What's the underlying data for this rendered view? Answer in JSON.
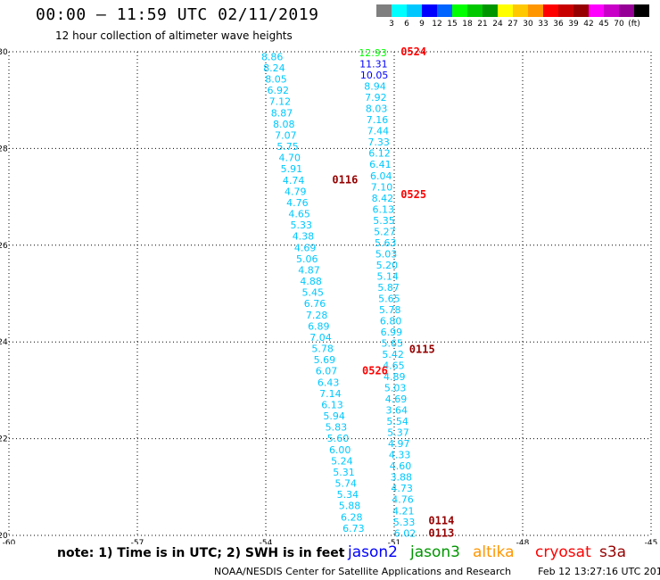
{
  "title": "00:00 – 11:59 UTC 02/11/2019",
  "subtitle": "12 hour collection of altimeter wave heights",
  "scale": {
    "colors": [
      "#7f7f7f",
      "#00ffff",
      "#00c8ff",
      "#0000ff",
      "#0064ff",
      "#00ff00",
      "#00c800",
      "#009600",
      "#ffff00",
      "#ffc800",
      "#ff9600",
      "#ff0000",
      "#c80000",
      "#960000",
      "#ff00ff",
      "#c800c8",
      "#960096",
      "#000000"
    ],
    "labels": [
      "3",
      "6",
      "9",
      "12",
      "15",
      "18",
      "21",
      "24",
      "27",
      "30",
      "33",
      "36",
      "39",
      "42",
      "45",
      "70",
      "(ft)"
    ]
  },
  "note": "note: 1) Time is in UTC; 2) SWH is in feet",
  "satellites": [
    {
      "name": "jason2",
      "color": "#0000ff"
    },
    {
      "name": "jason3",
      "color": "#009600"
    },
    {
      "name": "altika",
      "color": "#ff9600"
    },
    {
      "name": "cryosat",
      "color": "#ff0000"
    },
    {
      "name": "s3a",
      "color": "#960000"
    }
  ],
  "credit": "NOAA/NESDIS Center for Satellite Applications and Research",
  "timestamp": "Feb 12 13:27:16 UTC 2019",
  "chart_data": {
    "type": "scatter",
    "xlim": [
      -60,
      -45
    ],
    "ylim": [
      20,
      30
    ],
    "x_ticks": [
      "-60",
      "-57",
      "-54",
      "-51",
      "-48",
      "-45"
    ],
    "y_ticks": [
      "20",
      "22",
      "24",
      "26",
      "28",
      "30"
    ],
    "grid": true,
    "track_a": {
      "color": "#00c8ff",
      "x_start": -53.85,
      "y_start": 29.9,
      "x_end": -51.95,
      "y_end": 20.15,
      "values": [
        "8.86",
        "8.24",
        "8.05",
        "6.92",
        "7.12",
        "8.87",
        "8.08",
        "7.07",
        "5.75",
        "4.70",
        "5.91",
        "4.74",
        "4.79",
        "4.76",
        "4.65",
        "5.33",
        "4.38",
        "4.69",
        "5.06",
        "4.87",
        "4.88",
        "5.45",
        "6.76",
        "7.28",
        "6.89",
        "7.04",
        "5.78",
        "5.69",
        "6.07",
        "6.43",
        "7.14",
        "6.13",
        "5.94",
        "5.83",
        "5.60",
        "6.00",
        "5.24",
        "5.31",
        "5.74",
        "5.34",
        "5.88",
        "6.28",
        "6.73"
      ]
    },
    "track_b": {
      "x_start": -51.5,
      "y_start": 29.98,
      "x_end": -50.75,
      "y_end": 20.05,
      "points": [
        {
          "v": "12.93",
          "c": "#00ff00"
        },
        {
          "v": "11.31",
          "c": "#0000ff"
        },
        {
          "v": "10.05",
          "c": "#0000ff"
        },
        {
          "v": "8.94",
          "c": "#00c8ff"
        },
        {
          "v": "7.92",
          "c": "#00c8ff"
        },
        {
          "v": "8.03",
          "c": "#00c8ff"
        },
        {
          "v": "7.16",
          "c": "#00c8ff"
        },
        {
          "v": "7.44",
          "c": "#00c8ff"
        },
        {
          "v": "7.33",
          "c": "#00c8ff"
        },
        {
          "v": "6.12",
          "c": "#00c8ff"
        },
        {
          "v": "6.41",
          "c": "#00c8ff"
        },
        {
          "v": "6.04",
          "c": "#00c8ff"
        },
        {
          "v": "7.10",
          "c": "#00c8ff"
        },
        {
          "v": "8.42",
          "c": "#00c8ff"
        },
        {
          "v": "6.13",
          "c": "#00c8ff"
        },
        {
          "v": "5.35",
          "c": "#00c8ff"
        },
        {
          "v": "5.27",
          "c": "#00c8ff"
        },
        {
          "v": "5.63",
          "c": "#00c8ff"
        },
        {
          "v": "5.03",
          "c": "#00c8ff"
        },
        {
          "v": "5.20",
          "c": "#00c8ff"
        },
        {
          "v": "5.14",
          "c": "#00c8ff"
        },
        {
          "v": "5.87",
          "c": "#00c8ff"
        },
        {
          "v": "5.65",
          "c": "#00c8ff"
        },
        {
          "v": "5.78",
          "c": "#00c8ff"
        },
        {
          "v": "6.80",
          "c": "#00c8ff"
        },
        {
          "v": "6.99",
          "c": "#00c8ff"
        },
        {
          "v": "5.65",
          "c": "#00c8ff"
        },
        {
          "v": "5.42",
          "c": "#00c8ff"
        },
        {
          "v": "4.65",
          "c": "#00c8ff"
        },
        {
          "v": "4.89",
          "c": "#00c8ff"
        },
        {
          "v": "5.03",
          "c": "#00c8ff"
        },
        {
          "v": "4.69",
          "c": "#00c8ff"
        },
        {
          "v": "3.64",
          "c": "#00c8ff"
        },
        {
          "v": "5.54",
          "c": "#00c8ff"
        },
        {
          "v": "5.37",
          "c": "#00c8ff"
        },
        {
          "v": "4.97",
          "c": "#00c8ff"
        },
        {
          "v": "4.33",
          "c": "#00c8ff"
        },
        {
          "v": "4.60",
          "c": "#00c8ff"
        },
        {
          "v": "3.88",
          "c": "#00c8ff"
        },
        {
          "v": "4.73",
          "c": "#00c8ff"
        },
        {
          "v": "4.76",
          "c": "#00c8ff"
        },
        {
          "v": "4.21",
          "c": "#00c8ff"
        },
        {
          "v": "5.33",
          "c": "#00c8ff"
        },
        {
          "v": "6.02",
          "c": "#00c8ff"
        }
      ]
    },
    "time_labels": [
      {
        "label": "0524",
        "x": -50.85,
        "y": 30.0,
        "color": "#ff0000"
      },
      {
        "label": "0116",
        "x": -52.45,
        "y": 27.35,
        "color": "#960000"
      },
      {
        "label": "0525",
        "x": -50.85,
        "y": 27.05,
        "color": "#ff0000"
      },
      {
        "label": "0115",
        "x": -50.65,
        "y": 23.85,
        "color": "#960000"
      },
      {
        "label": "0526",
        "x": -51.75,
        "y": 23.4,
        "color": "#ff0000"
      },
      {
        "label": "0114",
        "x": -50.2,
        "y": 20.3,
        "color": "#960000"
      },
      {
        "label": "0113",
        "x": -50.2,
        "y": 20.05,
        "color": "#960000"
      }
    ]
  }
}
